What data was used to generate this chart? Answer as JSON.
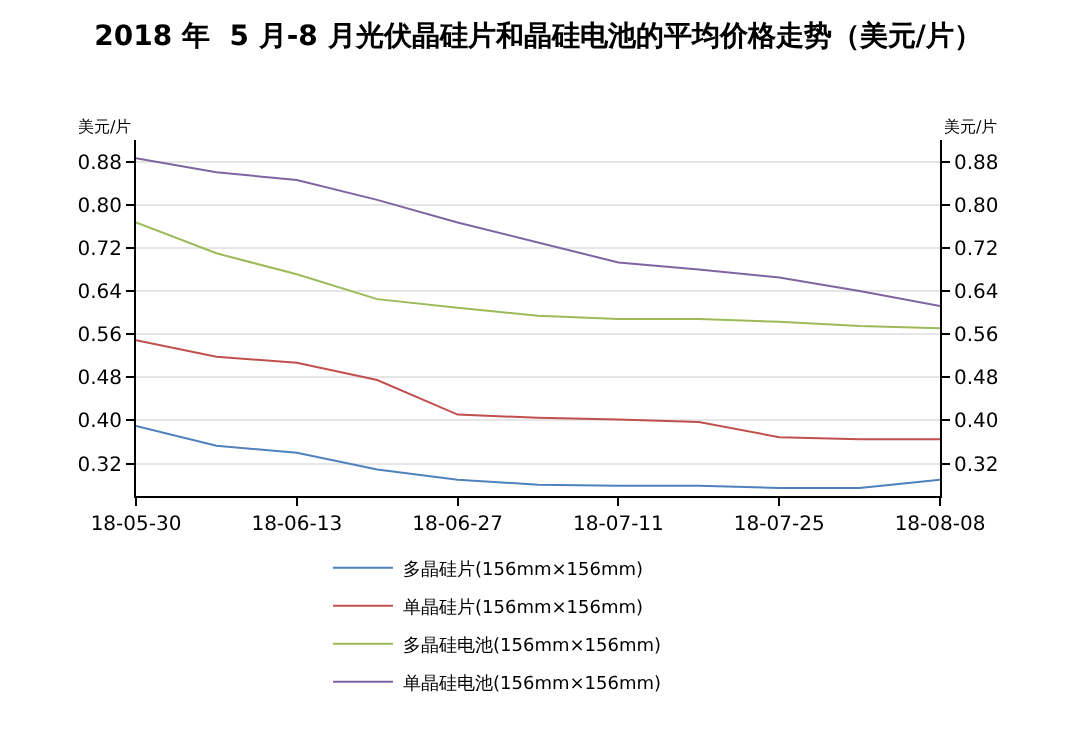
{
  "chart_data": {
    "type": "line",
    "title": "2018 年  5 月-8 月光伏晶硅片和晶硅电池的平均价格走势（美元/片）",
    "ylabel": "美元/片",
    "y2label": "美元/片",
    "x": [
      "2018-05-30",
      "2018-06-06",
      "2018-06-13",
      "2018-06-20",
      "2018-06-27",
      "2018-07-04",
      "2018-07-11",
      "2018-07-18",
      "2018-07-25",
      "2018-08-01",
      "2018-08-08"
    ],
    "series": [
      {
        "name": "多晶硅片(156mm×156mm)",
        "color": "#4f81bd",
        "values": [
          0.39,
          0.353,
          0.34,
          0.309,
          0.29,
          0.281,
          0.279,
          0.279,
          0.275,
          0.275,
          0.29
        ]
      },
      {
        "name": "单晶硅片(156mm×156mm)",
        "color": "#c0504d",
        "values": [
          0.549,
          0.518,
          0.507,
          0.475,
          0.411,
          0.405,
          0.402,
          0.397,
          0.369,
          0.365,
          0.365
        ]
      },
      {
        "name": "多晶硅电池(156mm×156mm)",
        "color": "#9bbb59",
        "values": [
          0.767,
          0.71,
          0.671,
          0.625,
          0.609,
          0.594,
          0.588,
          0.588,
          0.583,
          0.575,
          0.571
        ]
      },
      {
        "name": "单晶硅电池(156mm×156mm)",
        "color": "#8064a2",
        "values": [
          0.886,
          0.86,
          0.846,
          0.809,
          0.767,
          0.73,
          0.693,
          0.68,
          0.665,
          0.64,
          0.612
        ]
      }
    ],
    "xlim": [
      "2018-05-30",
      "2018-08-08"
    ],
    "xticks": [
      {
        "value": "2018-05-30",
        "label": "18-05-30"
      },
      {
        "value": "2018-06-13",
        "label": "18-06-13"
      },
      {
        "value": "2018-06-27",
        "label": "18-06-27"
      },
      {
        "value": "2018-07-11",
        "label": "18-07-11"
      },
      {
        "value": "2018-07-25",
        "label": "18-07-25"
      },
      {
        "value": "2018-08-08",
        "label": "18-08-08"
      }
    ],
    "ylim": [
      0.26,
      0.92
    ],
    "yticks": [
      {
        "value": 0.32,
        "label": "0.32"
      },
      {
        "value": 0.4,
        "label": "0.40"
      },
      {
        "value": 0.48,
        "label": "0.48"
      },
      {
        "value": 0.56,
        "label": "0.56"
      },
      {
        "value": 0.64,
        "label": "0.64"
      },
      {
        "value": 0.72,
        "label": "0.72"
      },
      {
        "value": 0.8,
        "label": "0.80"
      },
      {
        "value": 0.88,
        "label": "0.88"
      }
    ],
    "y2lim": [
      0.26,
      0.92
    ],
    "y2ticks": [
      {
        "value": 0.32,
        "label": "0.32"
      },
      {
        "value": 0.4,
        "label": "0.40"
      },
      {
        "value": 0.48,
        "label": "0.48"
      },
      {
        "value": 0.56,
        "label": "0.56"
      },
      {
        "value": 0.64,
        "label": "0.64"
      },
      {
        "value": 0.72,
        "label": "0.72"
      },
      {
        "value": 0.8,
        "label": "0.80"
      },
      {
        "value": 0.88,
        "label": "0.88"
      }
    ],
    "grid": "y",
    "legend": "bottom",
    "marker": "none",
    "line_style": "solid"
  }
}
